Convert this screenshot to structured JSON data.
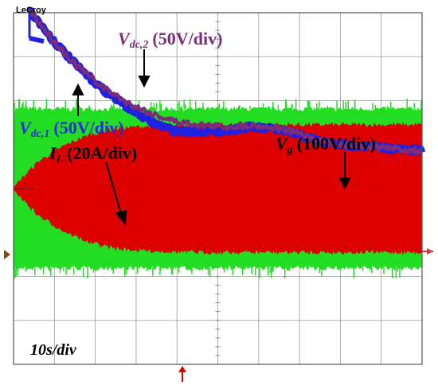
{
  "brand": "LeCroy",
  "chart_data": {
    "type": "line",
    "timebase": "10s/div",
    "grid": true,
    "series": [
      {
        "name": "Vdc,2",
        "label_main": "V",
        "label_sub": "dc,2",
        "scale": "(50V/div)",
        "color": "#7b2d7b",
        "values_div": [
          4.05,
          3.35,
          2.75,
          2.3,
          1.95,
          1.7,
          1.52,
          1.45,
          1.4,
          1.45,
          1.38,
          1.25,
          1.05,
          0.98,
          0.95,
          0.9,
          0.85
        ]
      },
      {
        "name": "Vdc,1",
        "label_main": "V",
        "label_sub": "dc,1",
        "scale": "(50V/div)",
        "color": "#2020e0",
        "values_div": [
          4.05,
          3.35,
          2.75,
          2.25,
          1.85,
          1.5,
          1.3,
          1.3,
          1.32,
          1.4,
          1.35,
          1.22,
          1.05,
          0.98,
          0.95,
          0.9,
          0.85
        ]
      },
      {
        "name": "IL",
        "label_main": "I",
        "label_sub": "L",
        "scale": "(20A/div)",
        "color": "#dd0000",
        "envelope_amplitude_div": [
          0.0,
          0.6,
          0.95,
          1.2,
          1.33,
          1.38,
          1.4,
          1.42,
          1.42,
          1.42,
          1.42,
          1.42,
          1.42,
          1.42,
          1.42,
          1.42,
          1.42
        ]
      },
      {
        "name": "Vg",
        "label_main": "V",
        "label_sub": "g",
        "scale": "(100V/div)",
        "color": "#22dd22",
        "envelope_amplitude_div": [
          1.8,
          1.8,
          1.8,
          1.8,
          1.8,
          1.8,
          1.8,
          1.8,
          1.8,
          1.8,
          1.8,
          1.8,
          1.8,
          1.8,
          1.8,
          1.8,
          1.8
        ]
      }
    ]
  }
}
